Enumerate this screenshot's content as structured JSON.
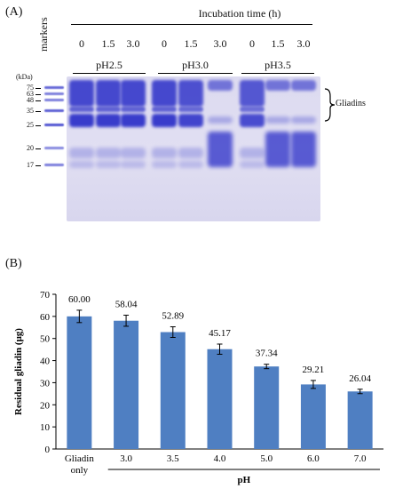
{
  "panel_a": {
    "label": "(A)",
    "header": "Incubation time (h)",
    "lane_markers": "markers",
    "kda_unit": "(kDa)",
    "kda_ticks": [
      "75",
      "63",
      "48",
      "35",
      "25",
      "20",
      "17"
    ],
    "times": [
      "0",
      "1.5",
      "3.0",
      "0",
      "1.5",
      "3.0",
      "0",
      "1.5",
      "3.0"
    ],
    "groups": [
      "pH2.5",
      "pH3.0",
      "pH3.5"
    ],
    "gliadins_label": "Gliadins",
    "colors": {
      "band": "#2b2fc8",
      "gel": "#dcdaf0"
    }
  },
  "panel_b": {
    "label": "(B)",
    "x_group_label": "pH",
    "chart_data": {
      "type": "bar",
      "categories": [
        "Gliadin only",
        "3.0",
        "3.5",
        "4.0",
        "5.0",
        "6.0",
        "7.0"
      ],
      "values": [
        60.0,
        58.04,
        52.89,
        45.17,
        37.34,
        29.21,
        26.04
      ],
      "value_labels": [
        "60.00",
        "58.04",
        "52.89",
        "45.17",
        "37.34",
        "29.21",
        "26.04"
      ],
      "errors": [
        2.8,
        2.5,
        2.4,
        2.3,
        1.0,
        1.8,
        1.0
      ],
      "ylabel": "Residual gliadin (μg)",
      "xlabel": "pH",
      "ylim": [
        0,
        70
      ],
      "yticks": [
        0,
        10,
        20,
        30,
        40,
        50,
        60,
        70
      ],
      "grid": false,
      "bar_color": "#4f7fc2"
    }
  }
}
